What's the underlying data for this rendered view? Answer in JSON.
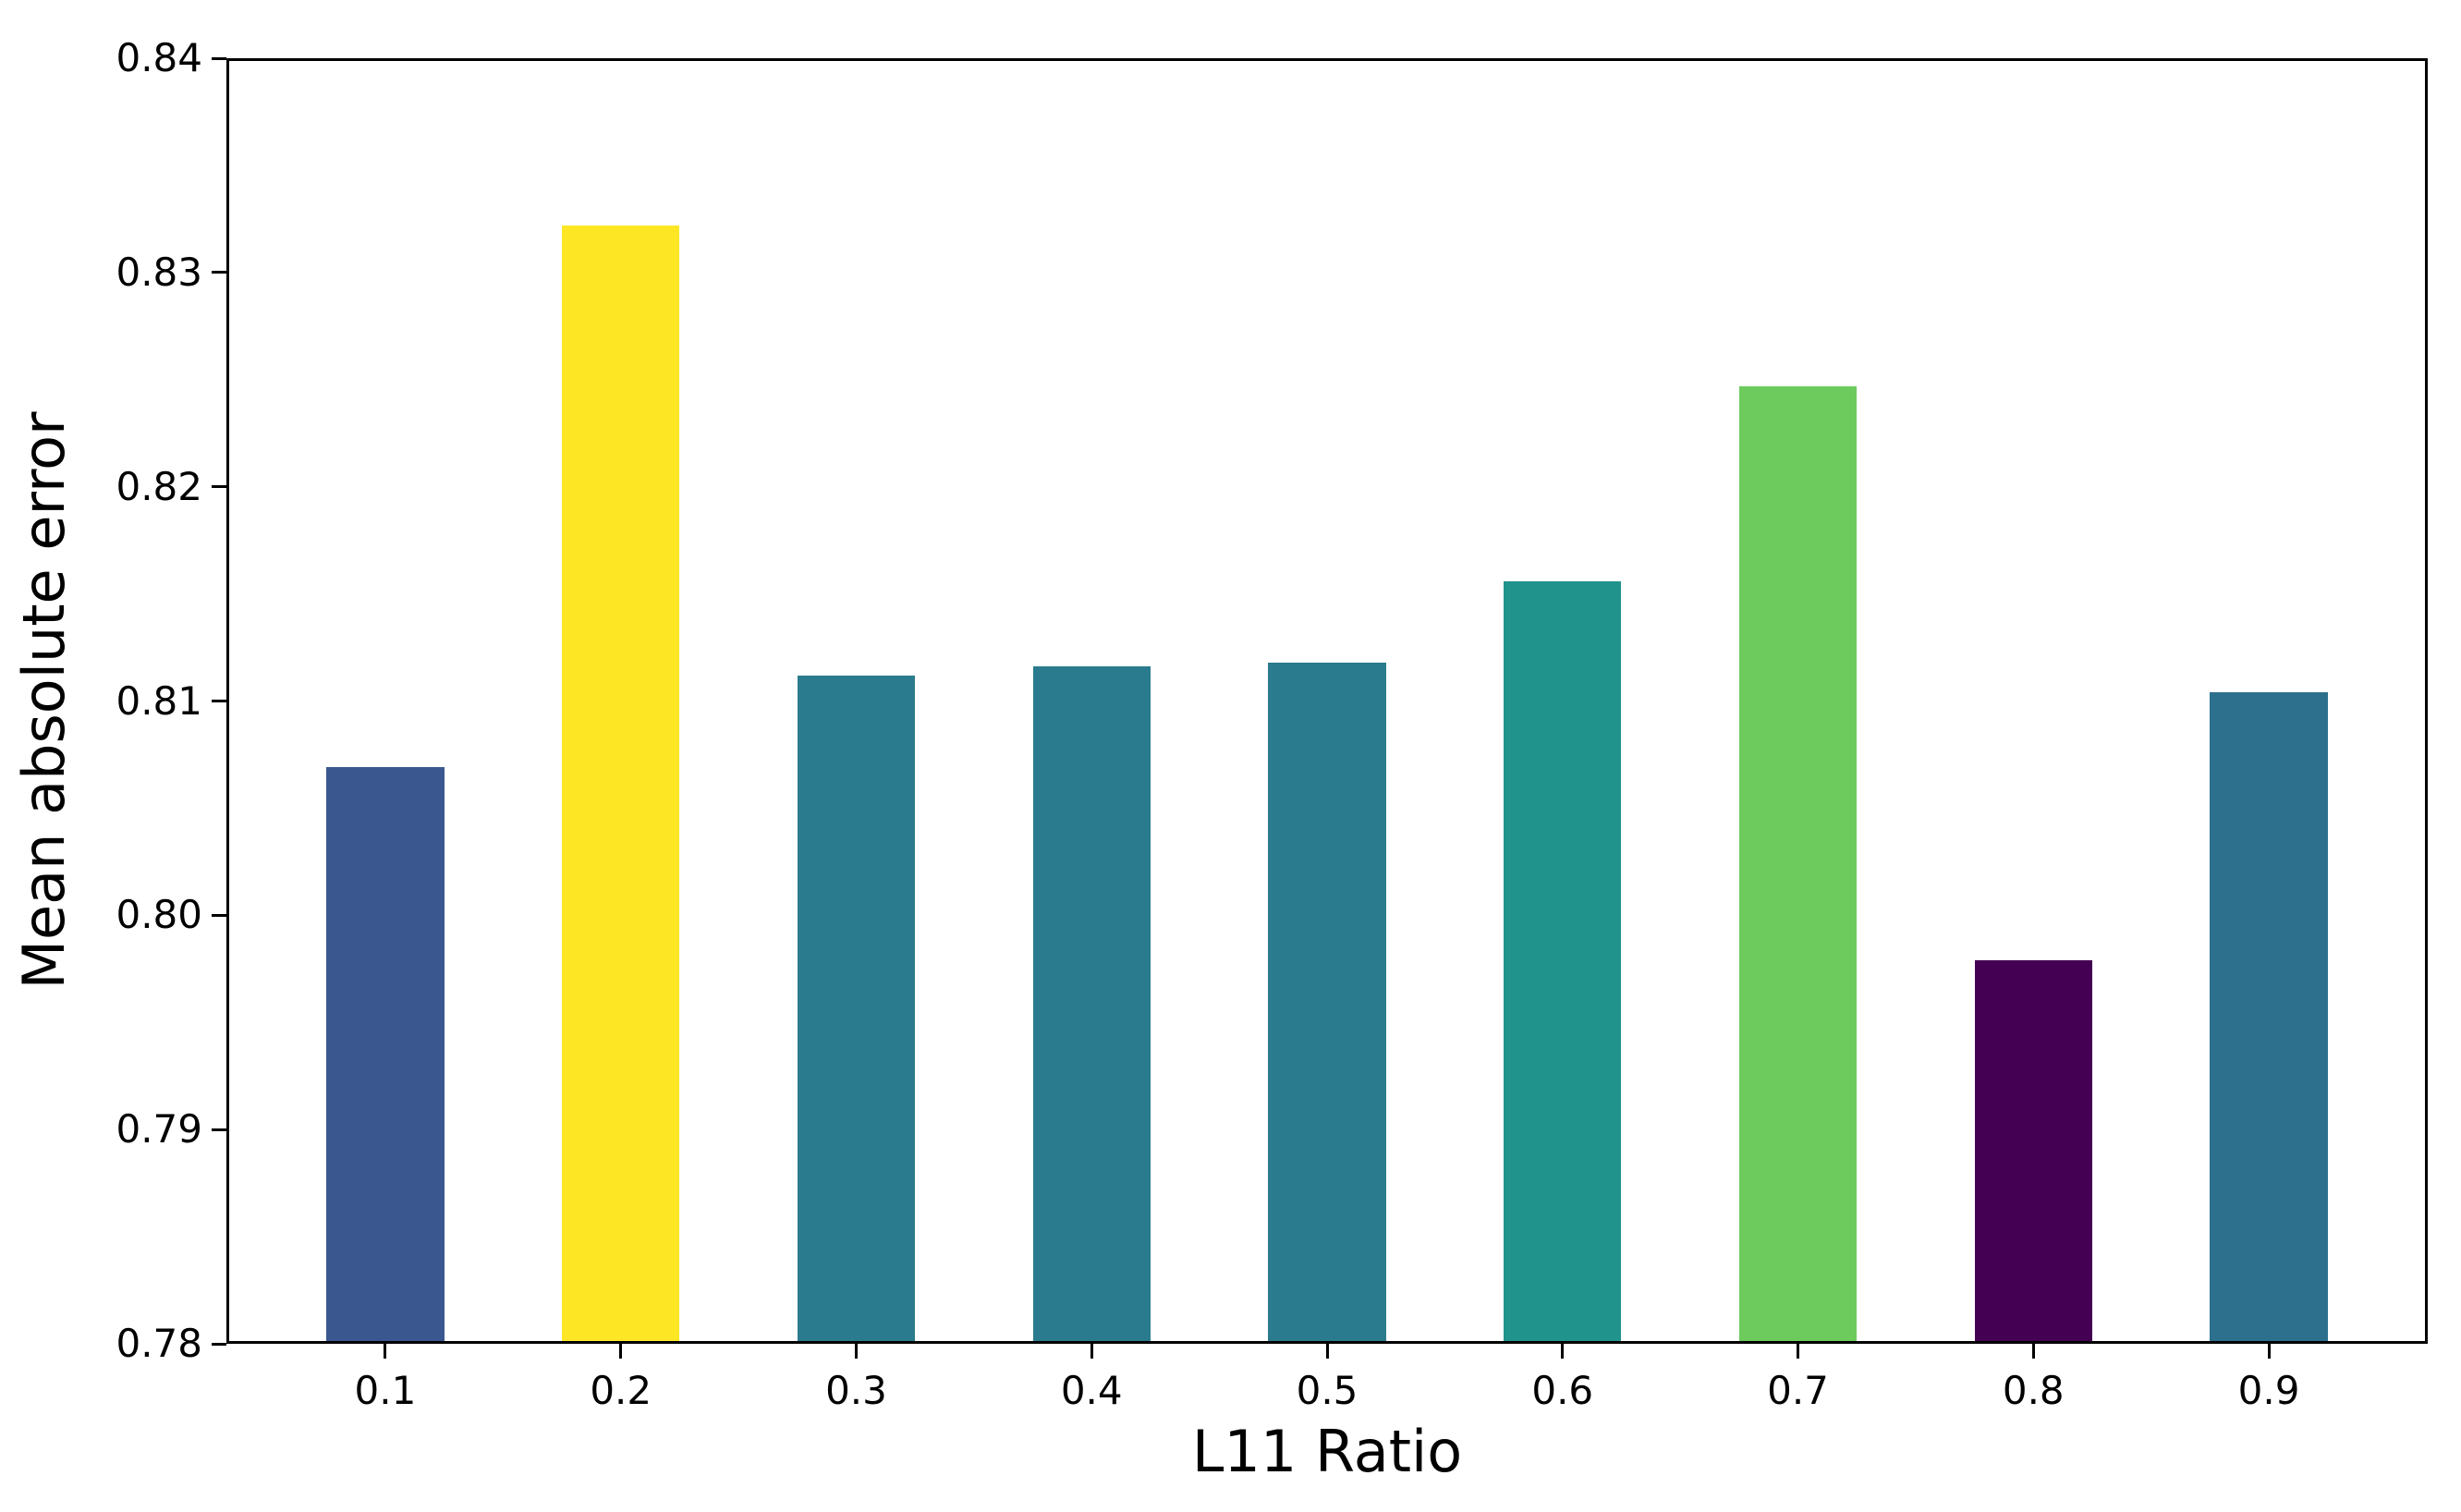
{
  "figure": {
    "background_color": "#ffffff",
    "axis_color": "#000000"
  },
  "chart_data": {
    "type": "bar",
    "title": "",
    "xlabel": "L11 Ratio",
    "ylabel": "Mean absolute error",
    "categories": [
      "0.1",
      "0.2",
      "0.3",
      "0.4",
      "0.5",
      "0.6",
      "0.7",
      "0.8",
      "0.9"
    ],
    "values": [
      0.8069,
      0.8322,
      0.8112,
      0.8116,
      0.8118,
      0.8156,
      0.8247,
      0.7979,
      0.8104
    ],
    "bar_colors": [
      "#3b578f",
      "#fde725",
      "#2a7b8d",
      "#2a7b8d",
      "#2a7b8d",
      "#20938c",
      "#6ccb5c",
      "#440154",
      "#2d708e"
    ],
    "ylim": [
      0.78,
      0.84
    ],
    "yticks": [
      "0.78",
      "0.79",
      "0.80",
      "0.81",
      "0.82",
      "0.83",
      "0.84"
    ],
    "grid": false,
    "legend": null
  }
}
